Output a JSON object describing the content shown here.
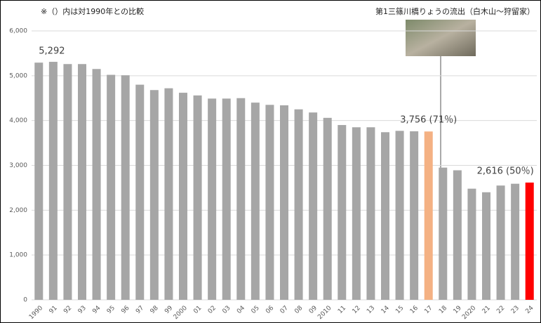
{
  "chart_data": {
    "type": "bar",
    "notes": [
      "※（）内は対1990年との比較",
      "第1三篠川橋りょうの流出（白木山～狩留家）"
    ],
    "categories": [
      "1990",
      "91",
      "92",
      "93",
      "94",
      "95",
      "96",
      "97",
      "98",
      "99",
      "2000",
      "01",
      "02",
      "03",
      "04",
      "05",
      "06",
      "07",
      "08",
      "09",
      "2010",
      "11",
      "12",
      "13",
      "14",
      "15",
      "16",
      "17",
      "18",
      "19",
      "2020",
      "21",
      "22",
      "23",
      "24"
    ],
    "values": [
      5292,
      5310,
      5260,
      5260,
      5150,
      5020,
      5010,
      4800,
      4680,
      4720,
      4620,
      4560,
      4490,
      4490,
      4500,
      4400,
      4350,
      4340,
      4250,
      4180,
      4060,
      3900,
      3850,
      3850,
      3740,
      3770,
      3760,
      3756,
      2950,
      2890,
      2480,
      2400,
      2550,
      2590,
      2616
    ],
    "value_labels": [
      "5,292",
      null,
      null,
      null,
      null,
      null,
      null,
      null,
      null,
      null,
      null,
      null,
      null,
      null,
      null,
      null,
      null,
      null,
      null,
      null,
      null,
      null,
      null,
      null,
      null,
      null,
      null,
      "3,756 (71％)",
      null,
      null,
      null,
      null,
      null,
      null,
      "2,616 (50％)"
    ],
    "colors": [
      "#a6a6a6",
      "#a6a6a6",
      "#a6a6a6",
      "#a6a6a6",
      "#a6a6a6",
      "#a6a6a6",
      "#a6a6a6",
      "#a6a6a6",
      "#a6a6a6",
      "#a6a6a6",
      "#a6a6a6",
      "#a6a6a6",
      "#a6a6a6",
      "#a6a6a6",
      "#a6a6a6",
      "#a6a6a6",
      "#a6a6a6",
      "#a6a6a6",
      "#a6a6a6",
      "#a6a6a6",
      "#a6a6a6",
      "#a6a6a6",
      "#a6a6a6",
      "#a6a6a6",
      "#a6a6a6",
      "#a6a6a6",
      "#a6a6a6",
      "#f4b183",
      "#a6a6a6",
      "#a6a6a6",
      "#a6a6a6",
      "#a6a6a6",
      "#a6a6a6",
      "#a6a6a6",
      "#ff0000"
    ],
    "ylim": [
      0,
      6000
    ],
    "yticks": [
      0,
      {
        "value": 1000,
        "label": "1,000"
      },
      {
        "value": 2000,
        "label": "2,000"
      },
      {
        "value": 3000,
        "label": "3,000"
      },
      {
        "value": 4000,
        "label": "4,000"
      },
      {
        "value": 5000,
        "label": "5,000"
      },
      {
        "value": 6000,
        "label": "6,000"
      }
    ],
    "grid": true
  }
}
